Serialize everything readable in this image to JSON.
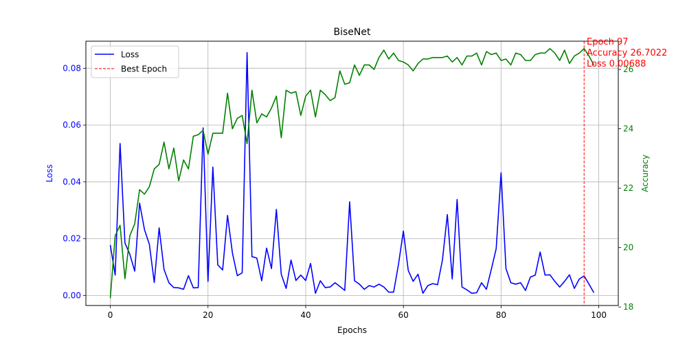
{
  "chart_data": {
    "type": "line",
    "title": "BiseNet",
    "xlabel": "Epochs",
    "ylabel_left": "Loss",
    "ylabel_right": "Accuracy",
    "xlim": [
      -5,
      104
    ],
    "ylim_left": [
      -0.0035,
      0.0895
    ],
    "ylim_right": [
      18.05,
      26.95
    ],
    "x_ticks": [
      0,
      20,
      40,
      60,
      80,
      100
    ],
    "y_ticks_left": [
      0.0,
      0.02,
      0.04,
      0.06,
      0.08
    ],
    "y_ticks_left_labels": [
      "0.00",
      "0.02",
      "0.04",
      "0.06",
      "0.08"
    ],
    "y_ticks_right": [
      18,
      20,
      22,
      24,
      26
    ],
    "grid": true,
    "legend_position": "top-left",
    "colors": {
      "loss": "#0000ff",
      "accuracy": "#008000",
      "best": "#ff0000"
    },
    "series": [
      {
        "name": "Loss",
        "axis": "left",
        "color": "#0000ff",
        "x": [
          0,
          1,
          2,
          3,
          4,
          5,
          6,
          7,
          8,
          9,
          10,
          11,
          12,
          13,
          14,
          15,
          16,
          17,
          18,
          19,
          20,
          21,
          22,
          23,
          24,
          25,
          26,
          27,
          28,
          29,
          30,
          31,
          32,
          33,
          34,
          35,
          36,
          37,
          38,
          39,
          40,
          41,
          42,
          43,
          44,
          45,
          46,
          47,
          48,
          49,
          50,
          51,
          52,
          53,
          54,
          55,
          56,
          57,
          58,
          59,
          60,
          61,
          62,
          63,
          64,
          65,
          66,
          67,
          68,
          69,
          70,
          71,
          72,
          73,
          74,
          75,
          76,
          77,
          78,
          79,
          80,
          81,
          82,
          83,
          84,
          85,
          86,
          87,
          88,
          89,
          90,
          91,
          92,
          93,
          94,
          95,
          96,
          97,
          98,
          99
        ],
        "values": [
          0.0178,
          0.0072,
          0.0535,
          0.0185,
          0.0145,
          0.0086,
          0.0325,
          0.0232,
          0.018,
          0.0046,
          0.0238,
          0.0092,
          0.0045,
          0.0028,
          0.0027,
          0.0022,
          0.007,
          0.0027,
          0.0028,
          0.059,
          0.005,
          0.0452,
          0.0108,
          0.009,
          0.0282,
          0.015,
          0.007,
          0.008,
          0.0855,
          0.0137,
          0.0132,
          0.0052,
          0.0167,
          0.0095,
          0.0303,
          0.0075,
          0.0025,
          0.0125,
          0.0053,
          0.0072,
          0.0053,
          0.0113,
          0.0008,
          0.0052,
          0.0028,
          0.003,
          0.0045,
          0.0032,
          0.0018,
          0.033,
          0.0052,
          0.004,
          0.0022,
          0.0035,
          0.003,
          0.004,
          0.003,
          0.0012,
          0.0012,
          0.011,
          0.0227,
          0.0088,
          0.005,
          0.0075,
          0.0008,
          0.0035,
          0.0042,
          0.0038,
          0.0125,
          0.0285,
          0.0058,
          0.0338,
          0.003,
          0.002,
          0.0008,
          0.001,
          0.0045,
          0.0022,
          0.0092,
          0.0165,
          0.0432,
          0.0095,
          0.0045,
          0.004,
          0.0045,
          0.0018,
          0.0065,
          0.0072,
          0.0153,
          0.0072,
          0.0073,
          0.005,
          0.003,
          0.005,
          0.0073,
          0.0025,
          0.0058,
          0.0069,
          0.004,
          0.001
        ]
      },
      {
        "name": "Accuracy",
        "axis": "right",
        "color": "#008000",
        "x": [
          0,
          1,
          2,
          3,
          4,
          5,
          6,
          7,
          8,
          9,
          10,
          11,
          12,
          13,
          14,
          15,
          16,
          17,
          18,
          19,
          20,
          21,
          22,
          23,
          24,
          25,
          26,
          27,
          28,
          29,
          30,
          31,
          32,
          33,
          34,
          35,
          36,
          37,
          38,
          39,
          40,
          41,
          42,
          43,
          44,
          45,
          46,
          47,
          48,
          49,
          50,
          51,
          52,
          53,
          54,
          55,
          56,
          57,
          58,
          59,
          60,
          61,
          62,
          63,
          64,
          65,
          66,
          67,
          68,
          69,
          70,
          71,
          72,
          73,
          74,
          75,
          76,
          77,
          78,
          79,
          80,
          81,
          82,
          83,
          84,
          85,
          86,
          87,
          88,
          89,
          90,
          91,
          92,
          93,
          94,
          95,
          96,
          97,
          98,
          99
        ],
        "values": [
          18.3,
          20.4,
          20.75,
          18.95,
          20.4,
          20.8,
          21.95,
          21.8,
          22.05,
          22.65,
          22.8,
          23.55,
          22.65,
          23.35,
          22.25,
          22.95,
          22.65,
          23.75,
          23.8,
          23.95,
          23.15,
          23.85,
          23.85,
          23.85,
          25.2,
          24.0,
          24.35,
          24.45,
          23.5,
          25.3,
          24.2,
          24.5,
          24.4,
          24.7,
          25.1,
          23.7,
          25.3,
          25.2,
          25.25,
          24.45,
          25.1,
          25.3,
          24.4,
          25.3,
          25.15,
          24.95,
          25.05,
          25.95,
          25.5,
          25.55,
          26.15,
          25.8,
          26.15,
          26.15,
          26.0,
          26.4,
          26.65,
          26.35,
          26.55,
          26.3,
          26.25,
          26.15,
          25.95,
          26.2,
          26.35,
          26.35,
          26.4,
          26.4,
          26.4,
          26.45,
          26.25,
          26.4,
          26.15,
          26.45,
          26.45,
          26.55,
          26.15,
          26.6,
          26.5,
          26.55,
          26.3,
          26.35,
          26.15,
          26.55,
          26.5,
          26.3,
          26.3,
          26.5,
          26.55,
          26.55,
          26.7,
          26.55,
          26.3,
          26.65,
          26.2,
          26.45,
          26.55,
          26.7022,
          26.45,
          26.15
        ]
      }
    ],
    "best_epoch": {
      "name": "Best Epoch",
      "x": 97,
      "annotation": [
        "Epoch 97",
        "Accuracy 26.7022",
        "Loss 0.00688"
      ]
    },
    "legend": [
      "Loss",
      "Best Epoch"
    ]
  }
}
